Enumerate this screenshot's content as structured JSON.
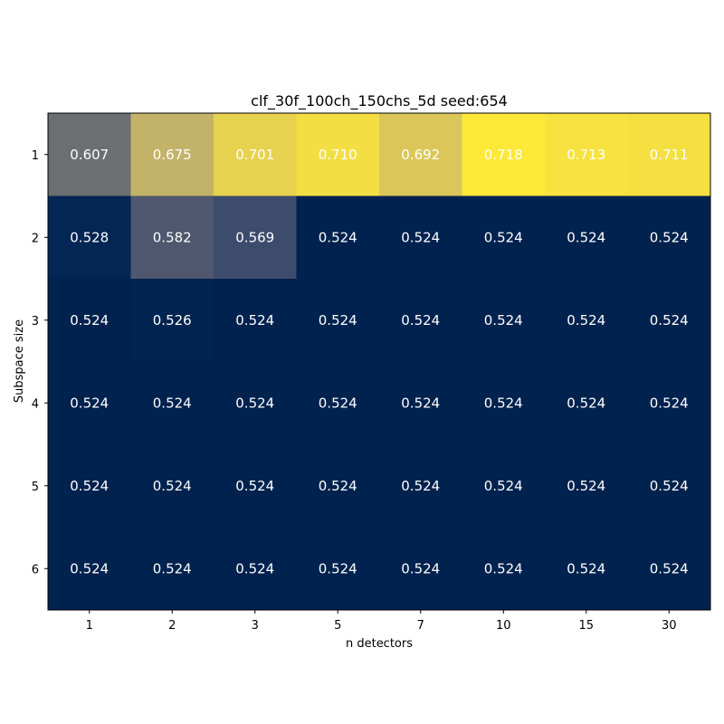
{
  "chart_data": {
    "type": "heatmap",
    "title": "clf_30f_100ch_150chs_5d seed:654",
    "xlabel": "n detectors",
    "ylabel": "Subspace size",
    "x_categories": [
      "1",
      "2",
      "3",
      "5",
      "7",
      "10",
      "15",
      "30"
    ],
    "y_categories": [
      "1",
      "2",
      "3",
      "4",
      "5",
      "6"
    ],
    "values": [
      [
        0.607,
        0.675,
        0.701,
        0.71,
        0.692,
        0.718,
        0.713,
        0.711
      ],
      [
        0.528,
        0.582,
        0.569,
        0.524,
        0.524,
        0.524,
        0.524,
        0.524
      ],
      [
        0.524,
        0.526,
        0.524,
        0.524,
        0.524,
        0.524,
        0.524,
        0.524
      ],
      [
        0.524,
        0.524,
        0.524,
        0.524,
        0.524,
        0.524,
        0.524,
        0.524
      ],
      [
        0.524,
        0.524,
        0.524,
        0.524,
        0.524,
        0.524,
        0.524,
        0.524
      ],
      [
        0.524,
        0.524,
        0.524,
        0.524,
        0.524,
        0.524,
        0.524,
        0.524
      ]
    ],
    "colormap": "cividis",
    "vmin": 0.524,
    "vmax": 0.718,
    "colors": {
      "cividis": [
        "#00224e",
        "#123570",
        "#3b496c",
        "#575d6d",
        "#707173",
        "#8a8678",
        "#a59c74",
        "#c3b369",
        "#e1cc55",
        "#fee838"
      ],
      "cell_text": "#ffffff"
    },
    "grid": false,
    "legend": "none"
  }
}
